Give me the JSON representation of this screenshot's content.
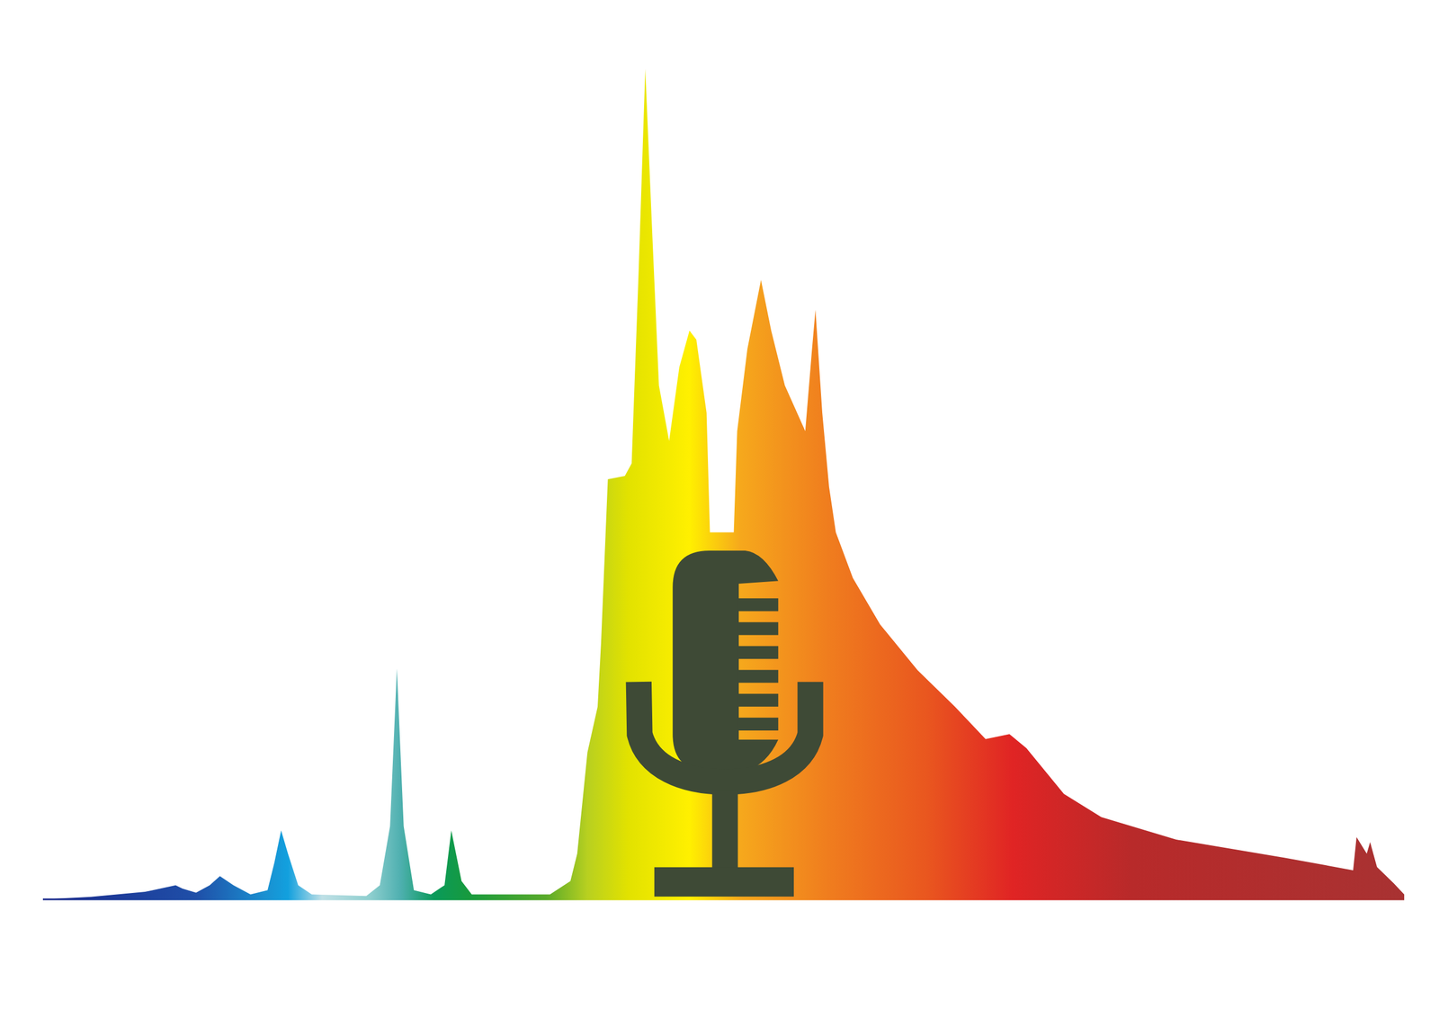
{
  "chart_data": {
    "type": "area",
    "x": [
      380,
      394,
      410,
      419,
      421,
      425,
      429,
      432,
      436,
      441,
      446,
      448,
      450,
      452,
      455,
      459,
      475,
      479,
      482,
      484,
      486,
      489,
      494,
      498,
      500,
      503,
      506,
      529,
      535,
      537,
      540,
      543,
      544,
      546,
      551,
      553,
      555,
      557,
      559,
      561,
      564,
      567,
      570,
      572,
      575,
      576,
      583,
      584,
      587,
      591,
      594,
      598,
      604,
      606,
      607,
      609,
      611,
      613,
      618,
      626,
      637,
      648,
      657,
      664,
      669,
      680,
      691,
      713,
      745,
      765,
      766,
      769,
      770,
      772,
      777,
      780
    ],
    "values": [
      0,
      0.3,
      0.9,
      1.7,
      1.3,
      0.8,
      1.7,
      2.8,
      1.7,
      0.6,
      1.1,
      4.4,
      8.3,
      5.5,
      1.7,
      0.6,
      0.4,
      1.7,
      8.8,
      27.8,
      8.8,
      1.1,
      0.6,
      1.7,
      8.3,
      2.2,
      0.6,
      0.6,
      2.2,
      5.5,
      17.7,
      23.2,
      30.9,
      50.6,
      51.0,
      52.5,
      75.1,
      100,
      80.7,
      61.9,
      55.2,
      64.1,
      68.5,
      67.4,
      58.6,
      44.2,
      44.2,
      56.4,
      66.3,
      74.6,
      68.5,
      61.9,
      56.4,
      66.3,
      71.0,
      58.6,
      49.7,
      44.2,
      38.7,
      33.1,
      27.6,
      23.2,
      19.3,
      19.9,
      18.2,
      12.7,
      9.9,
      7.2,
      5.0,
      3.5,
      7.5,
      5.5,
      6.9,
      3.9,
      1.9,
      0.6
    ],
    "xlim": [
      380,
      780
    ],
    "ylim": [
      0,
      100
    ],
    "grid": false,
    "tick_labels": false
  }
}
